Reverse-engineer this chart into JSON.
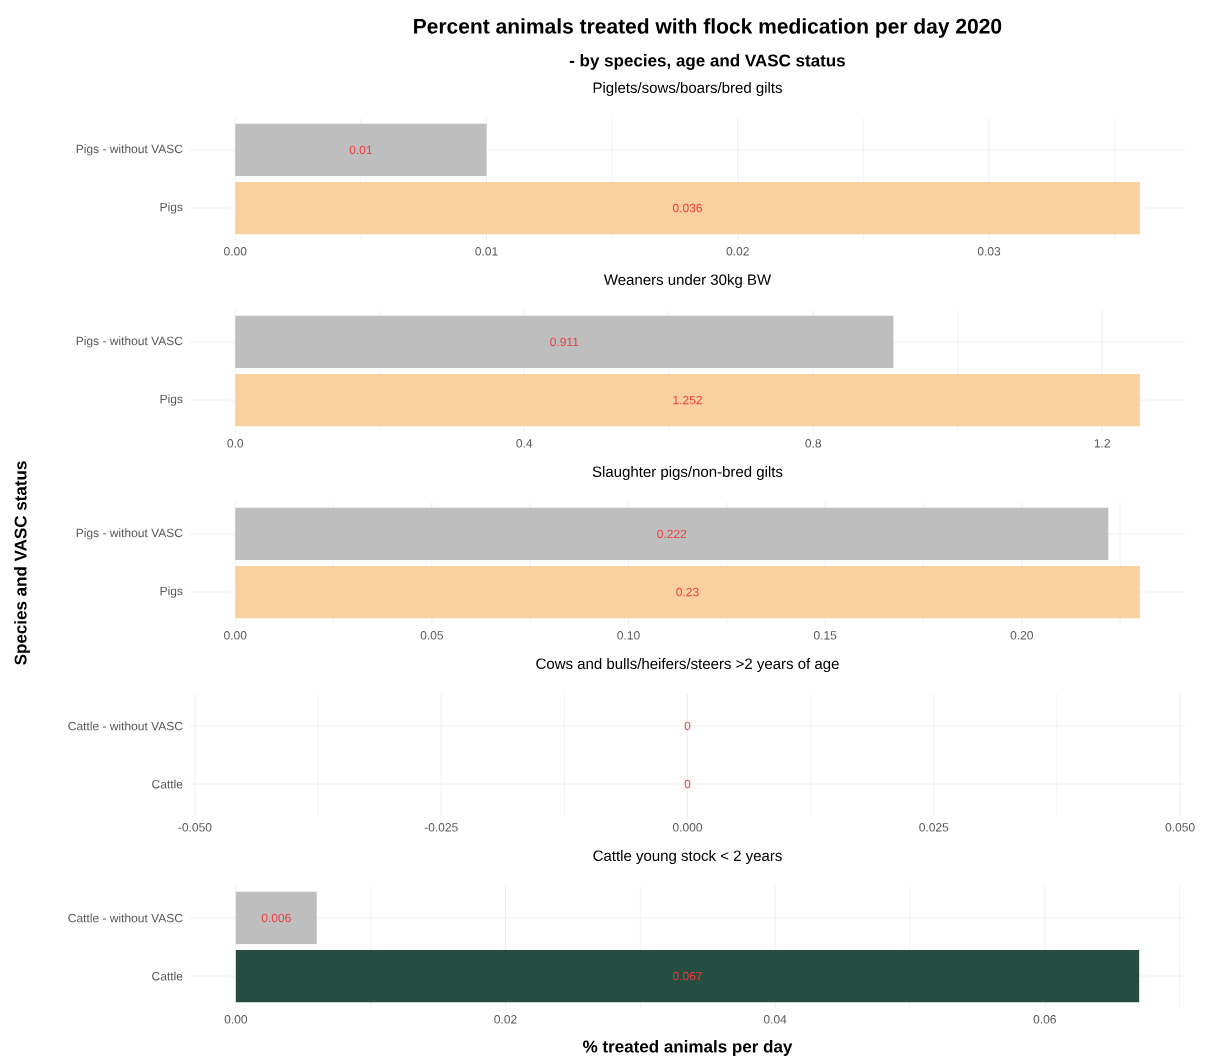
{
  "chart_data": [
    {
      "type": "bar",
      "orientation": "horizontal",
      "title": "Piglets/sows/boars/bred gilts",
      "annotations": [
        "Percent animals treated with flock medication per day 2020",
        "- by species, age and VASC status"
      ],
      "categories": [
        "Pigs - without VASC",
        "Pigs"
      ],
      "values": [
        0.01,
        0.036
      ],
      "colors": [
        "#bebebe",
        "#fbd0a0"
      ],
      "xlim": [
        -0.0018,
        0.0378
      ],
      "xticks": [
        {
          "value": 0,
          "label": "0.00"
        },
        0.01,
        0.02,
        0.03
      ],
      "grid": true,
      "data_labels": true
    },
    {
      "type": "bar",
      "orientation": "horizontal",
      "title": "Weaners under 30kg BW",
      "categories": [
        "Pigs - without VASC",
        "Pigs"
      ],
      "values": [
        0.911,
        1.252
      ],
      "colors": [
        "#bebebe",
        "#fbd0a0"
      ],
      "xlim": [
        -0.0626,
        1.3146
      ],
      "xticks": [
        {
          "value": 0,
          "label": "0.0"
        },
        0.4,
        0.8,
        1.2
      ],
      "grid": true,
      "data_labels": true
    },
    {
      "type": "bar",
      "orientation": "horizontal",
      "title": "Slaughter pigs/non-bred gilts",
      "ylabel": "Species and VASC status",
      "categories": [
        "Pigs - without VASC",
        "Pigs"
      ],
      "values": [
        0.222,
        0.23
      ],
      "colors": [
        "#bebebe",
        "#fbd0a0"
      ],
      "xlim": [
        -0.0115,
        0.2415
      ],
      "xticks": [
        {
          "value": 0,
          "label": "0.00"
        },
        0.05,
        {
          "value": 0.1,
          "label": "0.10"
        },
        0.15,
        {
          "value": 0.2,
          "label": "0.20"
        }
      ],
      "grid": true,
      "data_labels": true
    },
    {
      "type": "bar",
      "orientation": "horizontal",
      "title": "Cows and bulls/heifers/steers >2 years of age",
      "categories": [
        "Cattle - without VASC",
        "Cattle"
      ],
      "values": [
        0,
        0
      ],
      "colors": [
        "#bebebe",
        "#264d42"
      ],
      "xlim": [
        -0.0505,
        0.0505
      ],
      "xticks": [
        {
          "value": -0.05,
          "label": "-0.050"
        },
        {
          "value": -0.025,
          "label": "-0.025"
        },
        {
          "value": 0,
          "label": "0.000"
        },
        0.025,
        {
          "value": 0.05,
          "label": "0.050"
        }
      ],
      "grid": true,
      "data_labels": true
    },
    {
      "type": "bar",
      "orientation": "horizontal",
      "title": "Cattle young stock < 2 years",
      "xlabel": "% treated animals per day",
      "categories": [
        "Cattle - without VASC",
        "Cattle"
      ],
      "values": [
        0.006,
        0.067
      ],
      "colors": [
        "#bebebe",
        "#264d42"
      ],
      "xlim": [
        -0.0034,
        0.0704
      ],
      "xticks": [
        {
          "value": 0,
          "label": "0.00"
        },
        0.02,
        0.04,
        0.06
      ],
      "grid": true,
      "data_labels": true
    }
  ]
}
